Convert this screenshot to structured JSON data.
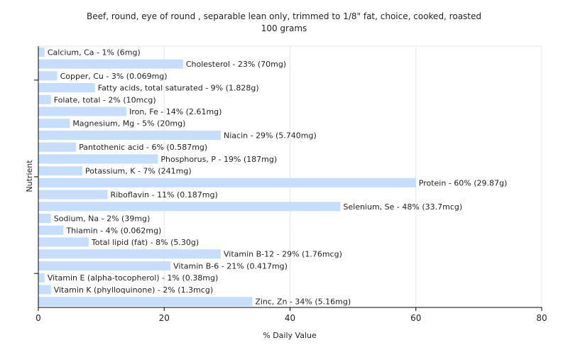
{
  "chart_data": {
    "type": "bar",
    "orientation": "horizontal",
    "title": "Beef, round, eye of round , separable lean only, trimmed to 1/8\" fat, choice, cooked, roasted",
    "subtitle": "100 grams",
    "xlabel": "% Daily Value",
    "ylabel": "Nutrient",
    "xlim": [
      0,
      80
    ],
    "xticks": [
      0,
      20,
      40,
      60,
      80
    ],
    "grid": true,
    "bar_color": "#c6ddfb",
    "categories": [
      "Calcium, Ca",
      "Cholesterol",
      "Copper, Cu",
      "Fatty acids, total saturated",
      "Folate, total",
      "Iron, Fe",
      "Magnesium, Mg",
      "Niacin",
      "Pantothenic acid",
      "Phosphorus, P",
      "Potassium, K",
      "Protein",
      "Riboflavin",
      "Selenium, Se",
      "Sodium, Na",
      "Thiamin",
      "Total lipid (fat)",
      "Vitamin B-12",
      "Vitamin B-6",
      "Vitamin E (alpha-tocopherol)",
      "Vitamin K (phylloquinone)",
      "Zinc, Zn"
    ],
    "values": [
      1,
      23,
      3,
      9,
      2,
      14,
      5,
      29,
      6,
      19,
      7,
      60,
      11,
      48,
      2,
      4,
      8,
      29,
      21,
      1,
      2,
      34
    ],
    "labels": [
      "Calcium, Ca - 1% (6mg)",
      "Cholesterol - 23% (70mg)",
      "Copper, Cu - 3% (0.069mg)",
      "Fatty acids, total saturated - 9% (1.828g)",
      "Folate, total - 2% (10mcg)",
      "Iron, Fe - 14% (2.61mg)",
      "Magnesium, Mg - 5% (20mg)",
      "Niacin - 29% (5.740mg)",
      "Pantothenic acid - 6% (0.587mg)",
      "Phosphorus, P - 19% (187mg)",
      "Potassium, K - 7% (241mg)",
      "Protein - 60% (29.87g)",
      "Riboflavin - 11% (0.187mg)",
      "Selenium, Se - 48% (33.7mcg)",
      "Sodium, Na - 2% (39mg)",
      "Thiamin - 4% (0.062mg)",
      "Total lipid (fat) - 8% (5.30g)",
      "Vitamin B-12 - 29% (1.76mcg)",
      "Vitamin B-6 - 21% (0.417mg)",
      "Vitamin E (alpha-tocopherol) - 1% (0.38mg)",
      "Vitamin K (phylloquinone) - 2% (1.3mcg)",
      "Zinc, Zn - 34% (5.16mg)"
    ]
  }
}
